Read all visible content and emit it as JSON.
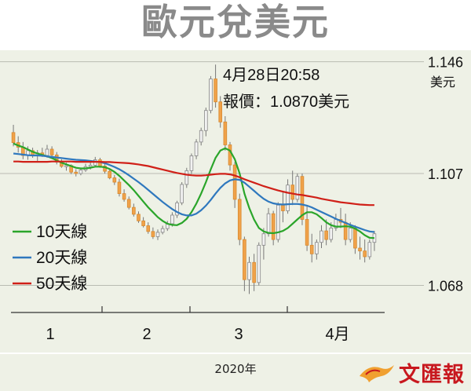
{
  "title": "歐元兌美元",
  "annotation": {
    "datetime": "4月28日20:58",
    "quote": "報價：1.0870美元"
  },
  "unit": "美元",
  "footer": {
    "year_label": "2020年",
    "publisher": "文匯報"
  },
  "colors": {
    "ma10": "#2aa52a",
    "ma20": "#2f78be",
    "ma50": "#d02018",
    "candle_up": "#f2f2f2",
    "candle_down": "#f0a24a",
    "panel_bg": "#eef1e6"
  },
  "chart_data": {
    "type": "candlestick",
    "title": "歐元兌美元",
    "ylabel": "美元",
    "ylim": [
      1.058,
      1.15
    ],
    "yticks": [
      1.146,
      1.107,
      1.068
    ],
    "xticks": [
      "1",
      "2",
      "3",
      "4月"
    ],
    "xlabel": "2020年",
    "legend": {
      "position": "left",
      "entries": [
        "10天線",
        "20天線",
        "50天線"
      ]
    },
    "ohlc": [
      [
        1.1213,
        1.124,
        1.1165,
        1.1178
      ],
      [
        1.1178,
        1.12,
        1.1143,
        1.1162
      ],
      [
        1.1162,
        1.118,
        1.112,
        1.1133
      ],
      [
        1.1133,
        1.1165,
        1.1118,
        1.115
      ],
      [
        1.115,
        1.116,
        1.1125,
        1.1135
      ],
      [
        1.1135,
        1.1152,
        1.111,
        1.1142
      ],
      [
        1.1142,
        1.116,
        1.1128,
        1.1133
      ],
      [
        1.1133,
        1.117,
        1.1125,
        1.1155
      ],
      [
        1.1155,
        1.1165,
        1.1125,
        1.1135
      ],
      [
        1.1135,
        1.1145,
        1.1102,
        1.111
      ],
      [
        1.111,
        1.112,
        1.109,
        1.1095
      ],
      [
        1.1095,
        1.1108,
        1.108,
        1.1098
      ],
      [
        1.1098,
        1.1102,
        1.1068,
        1.1075
      ],
      [
        1.1075,
        1.1085,
        1.106,
        1.107
      ],
      [
        1.107,
        1.109,
        1.1064,
        1.1082
      ],
      [
        1.1082,
        1.1104,
        1.1076,
        1.1094
      ],
      [
        1.1094,
        1.1108,
        1.1084,
        1.1099
      ],
      [
        1.1099,
        1.1128,
        1.1092,
        1.1118
      ],
      [
        1.1118,
        1.1125,
        1.109,
        1.1096
      ],
      [
        1.1096,
        1.1106,
        1.107,
        1.1078
      ],
      [
        1.1078,
        1.1088,
        1.105,
        1.1055
      ],
      [
        1.1055,
        1.1065,
        1.103,
        1.104
      ],
      [
        1.104,
        1.1052,
        1.099,
        1.1
      ],
      [
        1.1,
        1.1015,
        1.0972,
        1.098
      ],
      [
        1.098,
        1.099,
        1.0945,
        1.0952
      ],
      [
        1.0952,
        1.0965,
        1.092,
        1.0928
      ],
      [
        1.0928,
        1.0938,
        1.0898,
        1.0905
      ],
      [
        1.0905,
        1.0918,
        1.0882,
        1.0888
      ],
      [
        1.0888,
        1.09,
        1.086,
        1.0868
      ],
      [
        1.0868,
        1.0882,
        1.0842,
        1.085
      ],
      [
        1.085,
        1.0875,
        1.0838,
        1.0865
      ],
      [
        1.0865,
        1.0888,
        1.0858,
        1.0878
      ],
      [
        1.0878,
        1.0905,
        1.087,
        1.0895
      ],
      [
        1.0895,
        1.0935,
        1.0885,
        1.0925
      ],
      [
        1.0925,
        1.0975,
        1.0915,
        1.0968
      ],
      [
        1.0968,
        1.104,
        1.096,
        1.1032
      ],
      [
        1.1032,
        1.109,
        1.102,
        1.108
      ],
      [
        1.108,
        1.114,
        1.1068,
        1.1132
      ],
      [
        1.1132,
        1.119,
        1.112,
        1.118
      ],
      [
        1.118,
        1.123,
        1.1168,
        1.122
      ],
      [
        1.122,
        1.13,
        1.12,
        1.129
      ],
      [
        1.129,
        1.141,
        1.128,
        1.14
      ],
      [
        1.14,
        1.145,
        1.13,
        1.132
      ],
      [
        1.132,
        1.134,
        1.123,
        1.125
      ],
      [
        1.125,
        1.127,
        1.115,
        1.117
      ],
      [
        1.117,
        1.118,
        1.108,
        1.11
      ],
      [
        1.11,
        1.111,
        1.095,
        1.098
      ],
      [
        1.098,
        1.1,
        1.082,
        1.084
      ],
      [
        1.084,
        1.085,
        1.066,
        1.07
      ],
      [
        1.07,
        1.078,
        1.065,
        1.076
      ],
      [
        1.076,
        1.079,
        1.066,
        1.069
      ],
      [
        1.069,
        1.083,
        1.068,
        1.082
      ],
      [
        1.082,
        1.088,
        1.077,
        1.086
      ],
      [
        1.086,
        1.095,
        1.085,
        1.093
      ],
      [
        1.093,
        1.094,
        1.082,
        1.084
      ],
      [
        1.084,
        1.097,
        1.083,
        1.096
      ],
      [
        1.096,
        1.101,
        1.09,
        1.094
      ],
      [
        1.094,
        1.105,
        1.093,
        1.103
      ],
      [
        1.103,
        1.108,
        1.096,
        1.098
      ],
      [
        1.098,
        1.107,
        1.097,
        1.106
      ],
      [
        1.106,
        1.107,
        1.089,
        1.091
      ],
      [
        1.091,
        1.096,
        1.08,
        1.082
      ],
      [
        1.082,
        1.086,
        1.076,
        1.079
      ],
      [
        1.079,
        1.084,
        1.077,
        1.083
      ],
      [
        1.083,
        1.089,
        1.081,
        1.087
      ],
      [
        1.087,
        1.091,
        1.082,
        1.084
      ],
      [
        1.084,
        1.09,
        1.083,
        1.088
      ],
      [
        1.088,
        1.093,
        1.087,
        1.091
      ],
      [
        1.091,
        1.095,
        1.088,
        1.09
      ],
      [
        1.09,
        1.093,
        1.082,
        1.084
      ],
      [
        1.084,
        1.09,
        1.083,
        1.088
      ],
      [
        1.088,
        1.089,
        1.079,
        1.081
      ],
      [
        1.081,
        1.085,
        1.077,
        1.08
      ],
      [
        1.08,
        1.084,
        1.076,
        1.078
      ],
      [
        1.078,
        1.084,
        1.077,
        1.083
      ],
      [
        1.083,
        1.087,
        1.08,
        1.086
      ]
    ],
    "series": [
      {
        "name": "10天線",
        "values": [
          1.1175,
          1.1168,
          1.1162,
          1.1154,
          1.1146,
          1.114,
          1.1135,
          1.113,
          1.1124,
          1.1116,
          1.1108,
          1.1102,
          1.1096,
          1.109,
          1.1088,
          1.1088,
          1.109,
          1.1094,
          1.1094,
          1.1092,
          1.1086,
          1.1076,
          1.1062,
          1.1046,
          1.103,
          1.1012,
          1.0992,
          1.0972,
          1.0952,
          1.0935,
          1.0918,
          1.0905,
          1.0895,
          1.0891,
          1.089,
          1.0898,
          1.0912,
          1.0935,
          1.0965,
          1.1,
          1.104,
          1.1085,
          1.1125,
          1.115,
          1.1158,
          1.115,
          1.112,
          1.107,
          1.1,
          1.095,
          1.091,
          1.088,
          1.0868,
          1.0863,
          1.0862,
          1.0865,
          1.087,
          1.088,
          1.0895,
          1.091,
          1.0925,
          1.0935,
          1.0935,
          1.0928,
          1.0915,
          1.09,
          1.089,
          1.0885,
          1.0885,
          1.0886,
          1.0885,
          1.0878,
          1.0868,
          1.0855,
          1.0846,
          1.0845
        ]
      },
      {
        "name": "20天線",
        "values": [
          1.114,
          1.1138,
          1.1136,
          1.1134,
          1.1133,
          1.1133,
          1.1132,
          1.113,
          1.1128,
          1.1126,
          1.1124,
          1.1122,
          1.112,
          1.1118,
          1.1117,
          1.1116,
          1.1114,
          1.1112,
          1.111,
          1.1106,
          1.11,
          1.1093,
          1.1085,
          1.1075,
          1.1064,
          1.1052,
          1.104,
          1.1027,
          1.1013,
          1.0999,
          1.0985,
          1.0971,
          1.0958,
          1.0946,
          1.0936,
          1.0928,
          1.0924,
          1.0924,
          1.093,
          1.0942,
          1.0958,
          1.0978,
          1.1,
          1.102,
          1.1036,
          1.1046,
          1.105,
          1.1048,
          1.1038,
          1.1024,
          1.101,
          1.0995,
          1.0982,
          1.0972,
          1.0966,
          1.0963,
          1.0962,
          1.0963,
          1.0964,
          1.0964,
          1.0962,
          1.0958,
          1.0952,
          1.0944,
          1.0936,
          1.0928,
          1.092,
          1.0912,
          1.0905,
          1.0898,
          1.0891,
          1.0885,
          1.0879,
          1.0873,
          1.0868,
          1.0866
        ]
      },
      {
        "name": "50天線",
        "values": [
          1.1112,
          1.1112,
          1.1111,
          1.1111,
          1.1111,
          1.1111,
          1.1111,
          1.1111,
          1.1112,
          1.1112,
          1.1112,
          1.1112,
          1.1112,
          1.1111,
          1.1111,
          1.1111,
          1.1111,
          1.1111,
          1.1111,
          1.111,
          1.111,
          1.1109,
          1.1108,
          1.1107,
          1.1106,
          1.1104,
          1.1102,
          1.1099,
          1.1096,
          1.1092,
          1.1088,
          1.1084,
          1.108,
          1.1076,
          1.1072,
          1.1069,
          1.1066,
          1.1064,
          1.1063,
          1.1063,
          1.1064,
          1.1066,
          1.1068,
          1.1069,
          1.1069,
          1.1067,
          1.1063,
          1.1057,
          1.105,
          1.1044,
          1.1038,
          1.1032,
          1.1026,
          1.1021,
          1.1016,
          1.1011,
          1.1007,
          1.1003,
          1.1,
          1.0997,
          1.0995,
          1.0992,
          1.0989,
          1.0986,
          1.0982,
          1.0979,
          1.0976,
          1.0973,
          1.097,
          1.0968,
          1.0966,
          1.0964,
          1.0962,
          1.0961,
          1.096,
          1.096
        ]
      }
    ]
  }
}
